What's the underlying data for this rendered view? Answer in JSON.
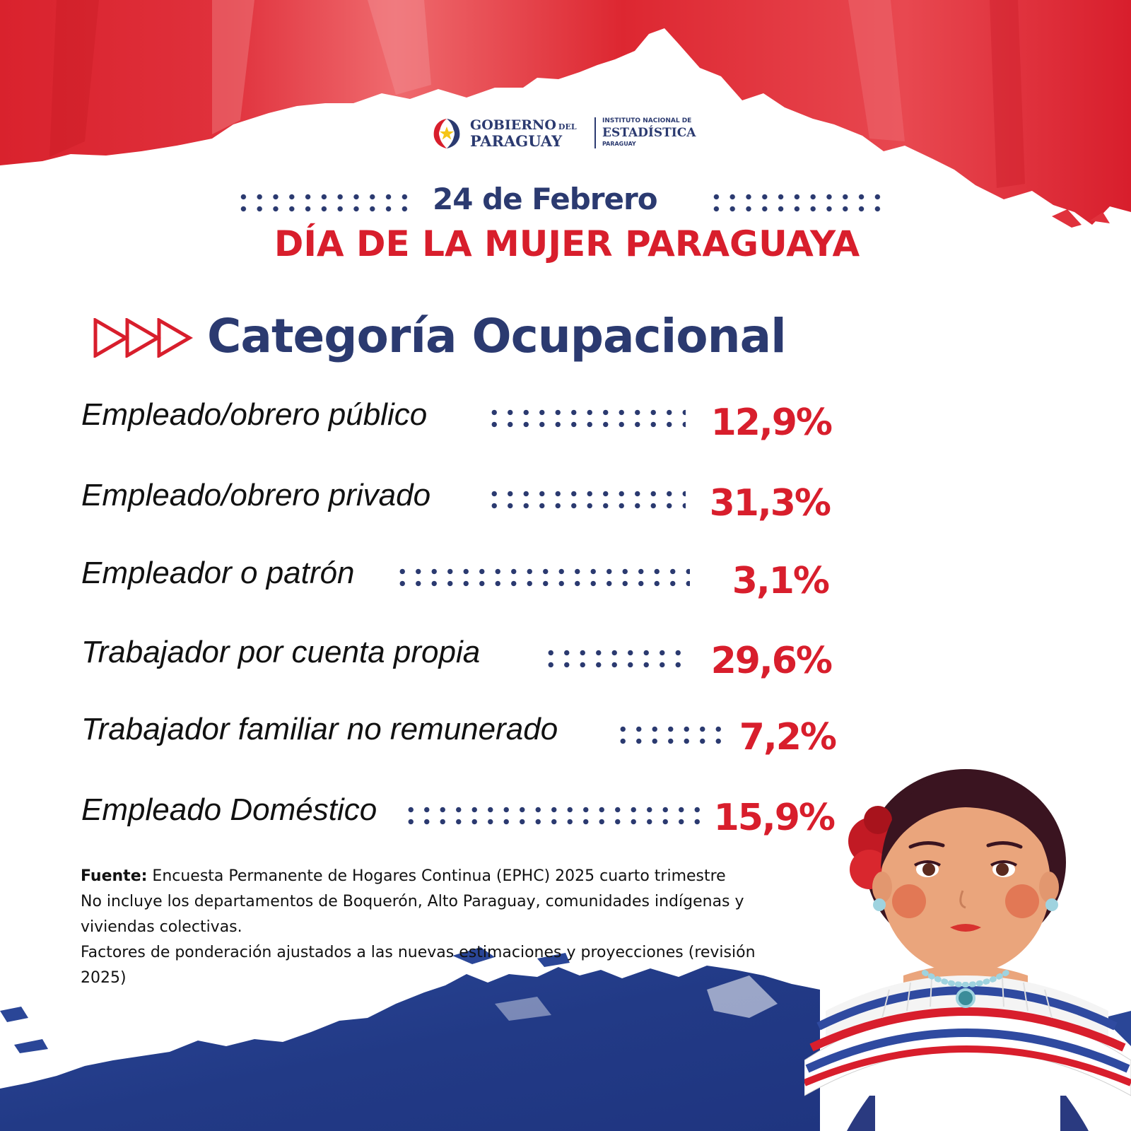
{
  "header": {
    "logo": {
      "gobierno": "GOBIERNO",
      "del": "DEL",
      "paraguay": "PARAGUAY",
      "instituto": "INSTITUTO NACIONAL DE",
      "estadistica": "ESTADÍSTICA",
      "ine_paraguay": "PARAGUAY"
    },
    "date": "24 de Febrero",
    "title": "DÍA DE LA MUJER PARAGUAYA"
  },
  "section": {
    "title": "Categoría Ocupacional",
    "rows": [
      {
        "label": "Empleado/obrero público",
        "value": "12,9%"
      },
      {
        "label": "Empleado/obrero privado",
        "value": "31,3%"
      },
      {
        "label": "Empleador o patrón",
        "value": "3,1%"
      },
      {
        "label": "Trabajador por cuenta propia",
        "value": "29,6%"
      },
      {
        "label": "Trabajador familiar no remunerado",
        "value": "7,2%"
      },
      {
        "label": "Empleado Doméstico",
        "value": "15,9%"
      }
    ]
  },
  "source": {
    "label": "Fuente:",
    "text": "Encuesta Permanente de Hogares Continua (EPHC) 2025 cuarto trimestre",
    "note1": "No incluye los departamentos de Boquerón, Alto Paraguay, comunidades indígenas y viviendas colectivas.",
    "note2": "Factores de ponderación ajustados a las nuevas estimaciones y proyecciones (revisión 2025)"
  },
  "colors": {
    "red": "#d81e2c",
    "blue": "#2b3a70",
    "navy_bg": "#27408f"
  },
  "icons": [
    "paraguay-seal-icon",
    "triple-arrow-icon",
    "paraguayan-woman-illustration"
  ]
}
